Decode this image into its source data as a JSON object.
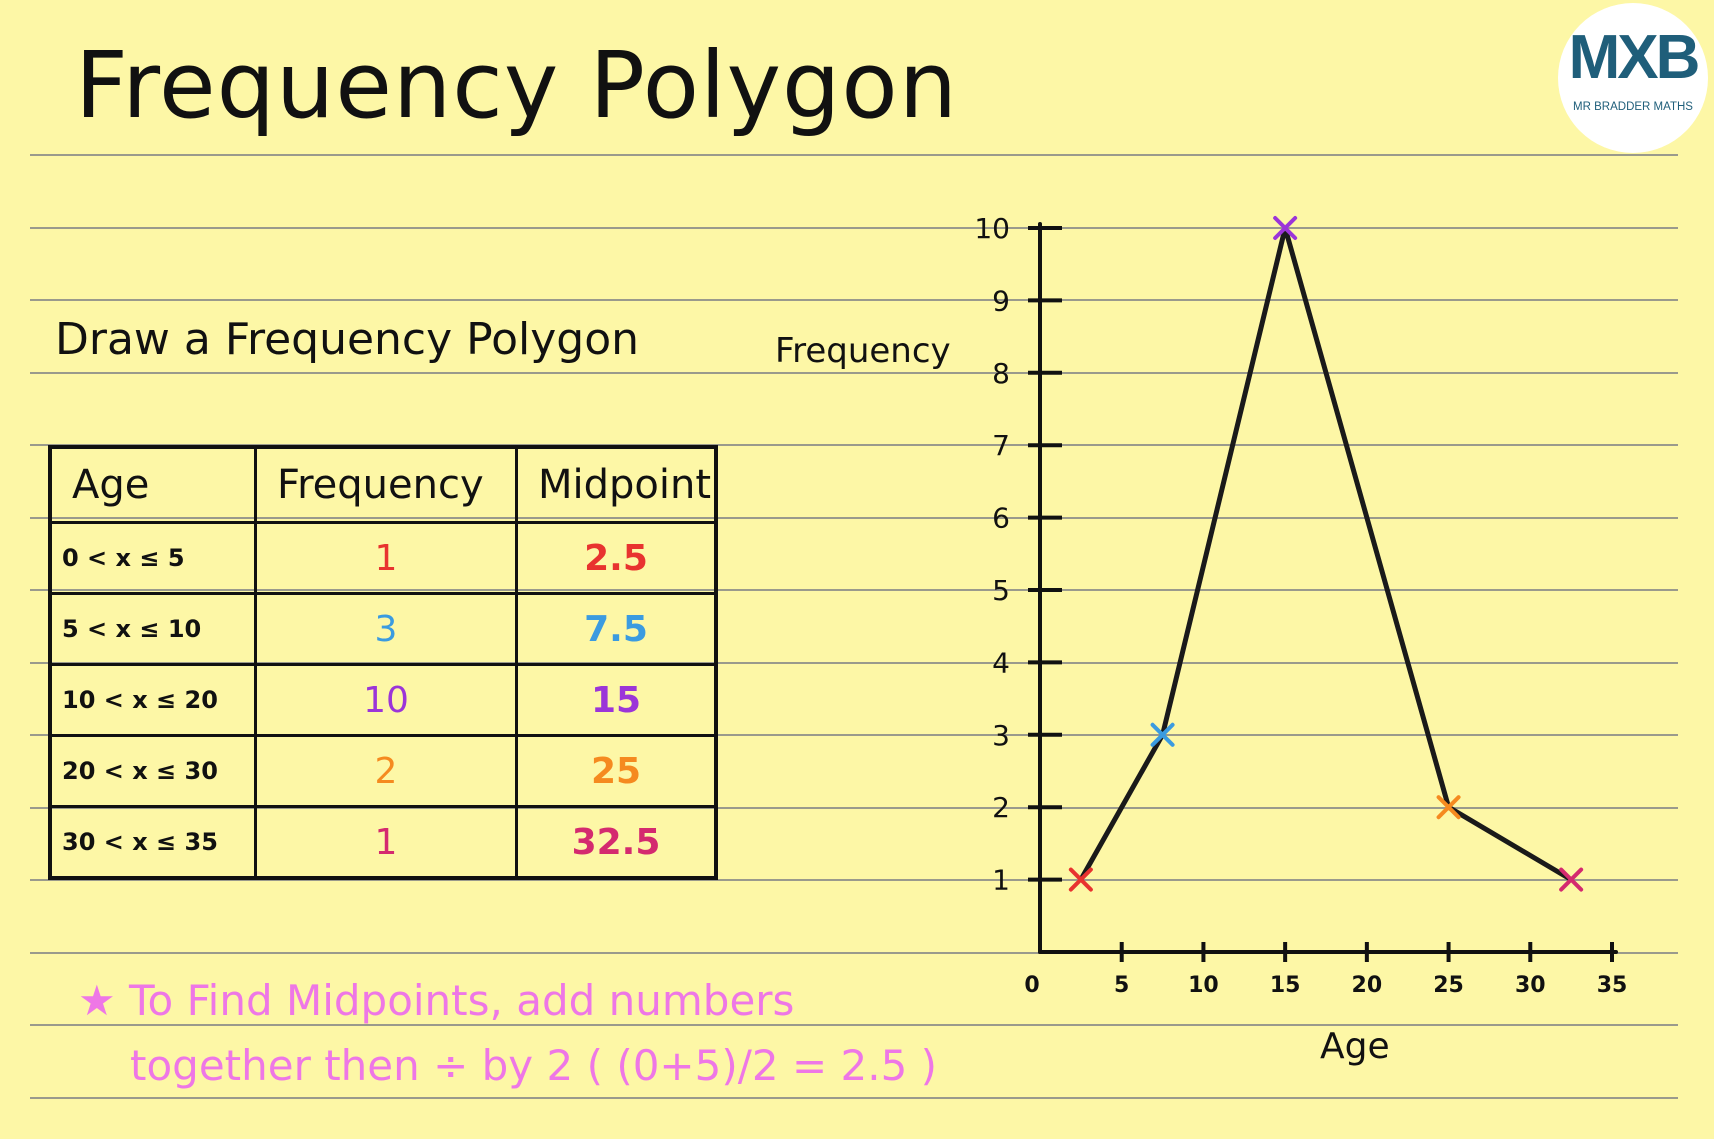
{
  "page": {
    "title": "Frequency Polygon",
    "logo_mark": "MXB",
    "logo_name": "MR BRADDER MATHS",
    "instruction": "Draw a Frequency Polygon"
  },
  "table": {
    "headers": [
      "Age",
      "Frequency",
      "Midpoint"
    ],
    "rows": [
      {
        "age": "0 < x ≤ 5",
        "frequency": "1",
        "midpoint": "2.5",
        "color": "#e8332f"
      },
      {
        "age": "5 < x ≤ 10",
        "frequency": "3",
        "midpoint": "7.5",
        "color": "#3b9be0"
      },
      {
        "age": "10 < x ≤ 20",
        "frequency": "10",
        "midpoint": "15",
        "color": "#9b35d8"
      },
      {
        "age": "20 < x ≤ 30",
        "frequency": "2",
        "midpoint": "25",
        "color": "#f58a1f"
      },
      {
        "age": "30 < x ≤ 35",
        "frequency": "1",
        "midpoint": "32.5",
        "color": "#d42a6f"
      }
    ]
  },
  "note": {
    "line1": "★ To Find Midpoints, add numbers",
    "line2": "together then ÷ by 2 ( (0+5)/2 = 2.5 )",
    "color": "#ee77e6"
  },
  "chart_data": {
    "type": "line",
    "xlabel": "Age",
    "ylabel": "Frequency",
    "xlim": [
      0,
      35
    ],
    "ylim": [
      0,
      10
    ],
    "x_ticks": [
      0,
      5,
      10,
      15,
      20,
      25,
      30,
      35
    ],
    "y_ticks": [
      1,
      2,
      3,
      4,
      5,
      6,
      7,
      8,
      9,
      10
    ],
    "points": [
      {
        "x": 2.5,
        "y": 1,
        "color": "#e8332f"
      },
      {
        "x": 7.5,
        "y": 3,
        "color": "#3b9be0"
      },
      {
        "x": 15,
        "y": 10,
        "color": "#9b35d8"
      },
      {
        "x": 25,
        "y": 2,
        "color": "#f58a1f"
      },
      {
        "x": 32.5,
        "y": 1,
        "color": "#d42a6f"
      }
    ],
    "line_color": "#1a1a1a"
  }
}
